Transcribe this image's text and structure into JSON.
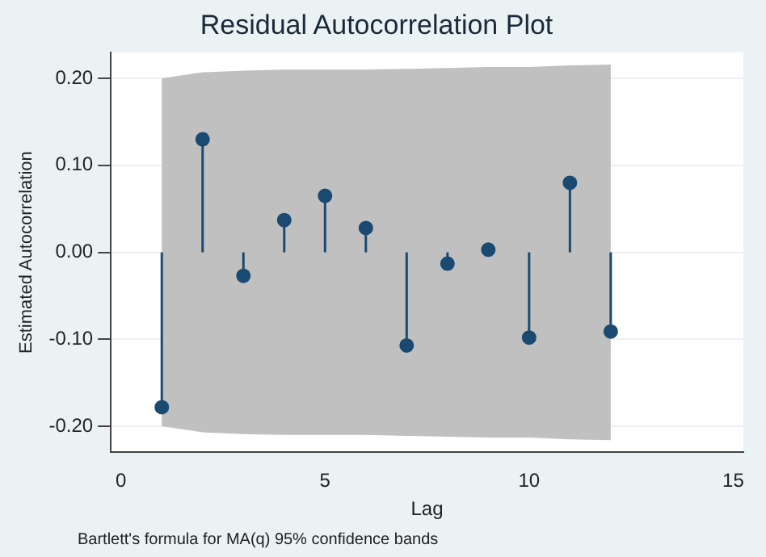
{
  "chart_data": {
    "type": "lollipop",
    "title": "Residual Autocorrelation Plot",
    "xlabel": "Lag",
    "ylabel": "Estimated Autocorrelation",
    "x": [
      1,
      2,
      3,
      4,
      5,
      6,
      7,
      8,
      9,
      10,
      11,
      12
    ],
    "series": [
      {
        "type": "area",
        "color": "#c0c0c0",
        "values": [
          null,
          null,
          null,
          null,
          null,
          null,
          null,
          null,
          null,
          null,
          null,
          null
        ],
        "lower": [
          -0.2,
          -0.207,
          -0.209,
          -0.21,
          -0.21,
          -0.21,
          -0.211,
          -0.212,
          -0.213,
          -0.213,
          -0.215,
          -0.216
        ],
        "upper": [
          0.2,
          0.207,
          0.209,
          0.21,
          0.21,
          0.21,
          0.211,
          0.212,
          0.213,
          0.213,
          0.215,
          0.216
        ]
      },
      {
        "color": "#1a4a72",
        "values": [
          -0.178,
          0.13,
          -0.027,
          0.037,
          0.065,
          0.028,
          -0.107,
          -0.013,
          0.003,
          -0.098,
          0.08,
          -0.091
        ]
      }
    ],
    "xlim": [
      -0.25,
      15.25
    ],
    "ylim": [
      -0.23,
      0.23
    ],
    "xticks": [
      0,
      5,
      10,
      15
    ],
    "yticks": [
      {
        "value": -0.2,
        "label": "-0.20"
      },
      {
        "value": -0.1,
        "label": "-0.10"
      },
      {
        "value": 0,
        "label": "0.00"
      },
      {
        "value": 0.1,
        "label": "0.10"
      },
      {
        "value": 0.2,
        "label": "0.20"
      }
    ],
    "grid": "y",
    "marker": "circle",
    "annotations": [
      "Bartlett's formula for MA(q) 95% confidence bands"
    ]
  }
}
